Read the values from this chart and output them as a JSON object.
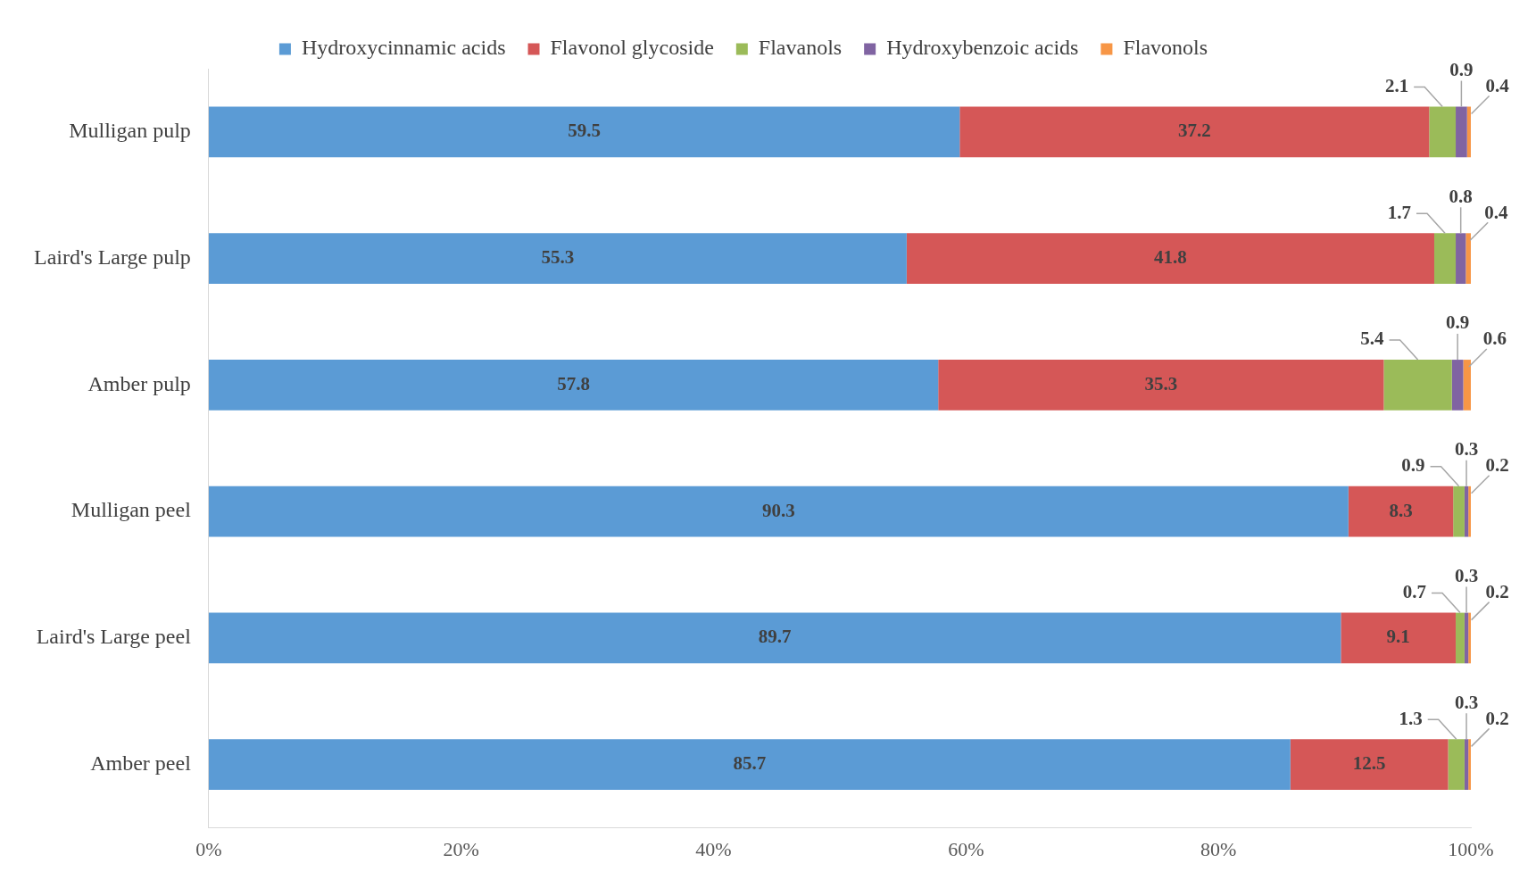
{
  "chart_data": {
    "type": "bar",
    "orientation": "horizontal",
    "stacked": true,
    "data_labels": true,
    "legend": "top",
    "grid": false,
    "categories": [
      "Mulligan pulp",
      "Laird's Large pulp",
      "Amber pulp",
      "Mulligan peel",
      "Laird's Large peel",
      "Amber peel"
    ],
    "xlim": [
      0,
      100
    ],
    "xticks": [
      {
        "value": 0,
        "label": "0%"
      },
      {
        "value": 20,
        "label": "20%"
      },
      {
        "value": 40,
        "label": "40%"
      },
      {
        "value": 60,
        "label": "60%"
      },
      {
        "value": 80,
        "label": "80%"
      },
      {
        "value": 100,
        "label": "100%"
      }
    ],
    "series": [
      {
        "name": "Hydroxycinnamic acids",
        "color": "#5b9bd5",
        "values": [
          59.5,
          55.3,
          57.8,
          90.3,
          89.7,
          85.7
        ]
      },
      {
        "name": "Flavonol glycoside",
        "color": "#d55757",
        "values": [
          37.2,
          41.8,
          35.3,
          8.3,
          9.1,
          12.5
        ]
      },
      {
        "name": "Flavanols",
        "color": "#9bbb59",
        "values": [
          2.1,
          1.7,
          5.4,
          0.9,
          0.7,
          1.3
        ]
      },
      {
        "name": "Hydroxybenzoic acids",
        "color": "#8064a2",
        "values": [
          0.9,
          0.8,
          0.9,
          0.3,
          0.3,
          0.3
        ]
      },
      {
        "name": "Flavonols",
        "color": "#f79646",
        "values": [
          0.4,
          0.4,
          0.6,
          0.2,
          0.2,
          0.2
        ]
      }
    ]
  }
}
